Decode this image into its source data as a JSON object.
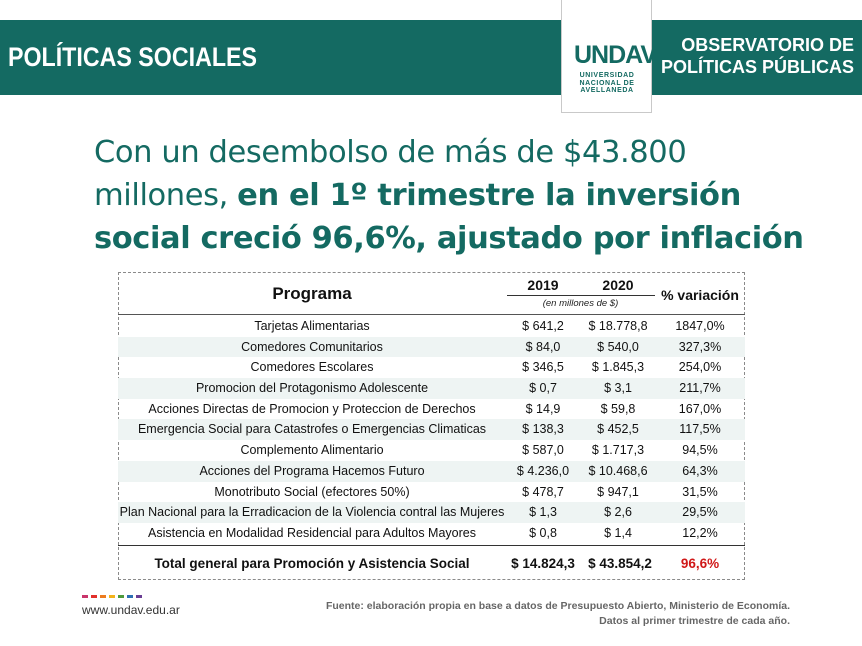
{
  "header": {
    "section_title": "POLÍTICAS SOCIALES",
    "logo_mark": "UNDAV",
    "logo_lines": [
      "UNIVERSIDAD",
      "NACIONAL DE",
      "AVELLANEDA"
    ],
    "observatorio_lines": [
      "OBSERVATORIO DE",
      "POLÍTICAS PÚBLICAS"
    ],
    "banner_color": "#146a62"
  },
  "headline": {
    "normal": "Con un desembolso de más de $43.800 millones, ",
    "bold": "en el 1º trimestre la inversión social creció 96,6%, ajustado por inflación"
  },
  "table": {
    "headers": {
      "programa": "Programa",
      "year_2019": "2019",
      "year_2020": "2020",
      "unit": "(en millones de $)",
      "variacion": "% variación"
    },
    "rows": [
      {
        "programa": "Tarjetas Alimentarias",
        "y2019": "$ 641,2",
        "y2020": "$ 18.778,8",
        "variacion": "1847,0%"
      },
      {
        "programa": "Comedores Comunitarios",
        "y2019": "$ 84,0",
        "y2020": "$ 540,0",
        "variacion": "327,3%"
      },
      {
        "programa": "Comedores Escolares",
        "y2019": "$ 346,5",
        "y2020": "$ 1.845,3",
        "variacion": "254,0%"
      },
      {
        "programa": "Promocion del Protagonismo Adolescente",
        "y2019": "$ 0,7",
        "y2020": "$ 3,1",
        "variacion": "211,7%"
      },
      {
        "programa": "Acciones Directas de Promocion y Proteccion de Derechos",
        "y2019": "$ 14,9",
        "y2020": "$ 59,8",
        "variacion": "167,0%"
      },
      {
        "programa": "Emergencia Social para Catastrofes o Emergencias Climaticas",
        "y2019": "$ 138,3",
        "y2020": "$ 452,5",
        "variacion": "117,5%"
      },
      {
        "programa": "Complemento Alimentario",
        "y2019": "$ 587,0",
        "y2020": "$ 1.717,3",
        "variacion": "94,5%"
      },
      {
        "programa": "Acciones del Programa Hacemos Futuro",
        "y2019": "$ 4.236,0",
        "y2020": "$ 10.468,6",
        "variacion": "64,3%"
      },
      {
        "programa": "Monotributo Social (efectores 50%)",
        "y2019": "$ 478,7",
        "y2020": "$ 947,1",
        "variacion": "31,5%"
      },
      {
        "programa": "Plan Nacional para la Erradicacion de la Violencia contral las Mujeres",
        "y2019": "$ 1,3",
        "y2020": "$ 2,6",
        "variacion": "29,5%"
      },
      {
        "programa": "Asistencia en Modalidad Residencial para Adultos Mayores",
        "y2019": "$ 0,8",
        "y2020": "$ 1,4",
        "variacion": "12,2%"
      }
    ],
    "total": {
      "programa": "Total general para Promoción y Asistencia Social",
      "y2019": "$ 14.824,3",
      "y2020": "$ 43.854,2",
      "variacion": "96,6%"
    },
    "total_variation_color": "#d01818",
    "alt_row_color": "#eef4f3"
  },
  "footer": {
    "url": "www.undav.edu.ar",
    "source_lines": [
      "Fuente: elaboración propia en base a datos de Presupuesto Abierto, Ministerio de Economía.",
      "Datos al primer trimestre de cada año."
    ],
    "dot_colors": [
      "#c9356b",
      "#e2302b",
      "#ec7b1f",
      "#f3b31b",
      "#4e9a3c",
      "#2c6fb3",
      "#6a3d93"
    ]
  }
}
